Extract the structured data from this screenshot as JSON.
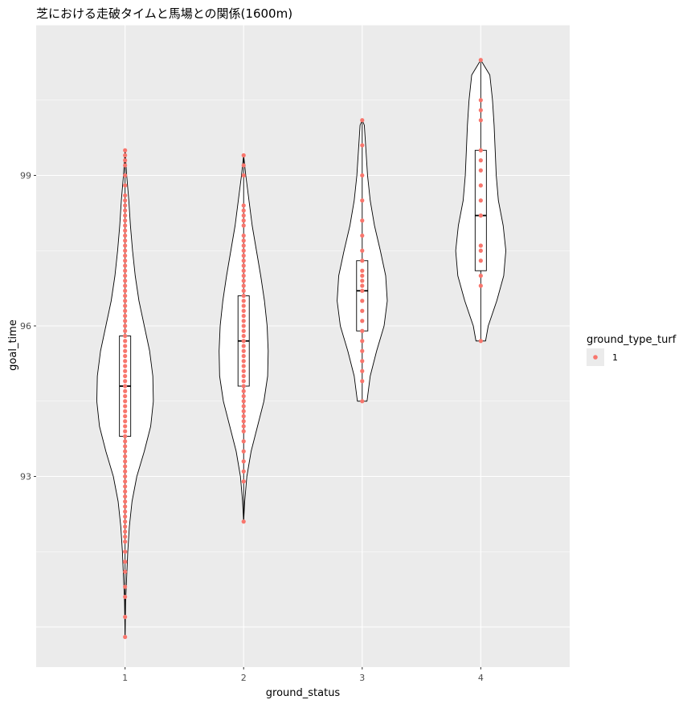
{
  "chart_data": {
    "type": "violin",
    "title": "芝における走破タイムと馬場との関係(1600m)",
    "xlabel": "ground_status",
    "ylabel": "goal_time",
    "categories": [
      "1",
      "2",
      "3",
      "4"
    ],
    "y_ticks": [
      93,
      96,
      99
    ],
    "ylim": [
      89.2,
      102.0
    ],
    "grid": true,
    "legend": {
      "title": "ground_type_turf",
      "position": "right",
      "entries": [
        {
          "label": "1",
          "color": "#F8766D"
        }
      ]
    },
    "point_color": "#F8766D",
    "groups": [
      {
        "category": "1",
        "box": {
          "min": 89.8,
          "q1": 93.8,
          "median": 94.8,
          "q3": 95.8,
          "max": 99.5
        },
        "violin": [
          [
            89.8,
            0.0
          ],
          [
            90.5,
            0.01
          ],
          [
            91.0,
            0.03
          ],
          [
            91.5,
            0.05
          ],
          [
            92.0,
            0.08
          ],
          [
            92.5,
            0.13
          ],
          [
            93.0,
            0.22
          ],
          [
            93.5,
            0.36
          ],
          [
            94.0,
            0.48
          ],
          [
            94.5,
            0.53
          ],
          [
            95.0,
            0.52
          ],
          [
            95.5,
            0.46
          ],
          [
            96.0,
            0.36
          ],
          [
            96.5,
            0.26
          ],
          [
            97.0,
            0.19
          ],
          [
            97.5,
            0.14
          ],
          [
            98.0,
            0.1
          ],
          [
            98.5,
            0.07
          ],
          [
            99.0,
            0.03
          ],
          [
            99.5,
            0.0
          ]
        ],
        "points": [
          89.8,
          90.2,
          90.6,
          90.8,
          91.1,
          91.3,
          91.5,
          91.7,
          91.8,
          91.9,
          92.0,
          92.1,
          92.2,
          92.3,
          92.4,
          92.5,
          92.6,
          92.7,
          92.8,
          92.9,
          93.0,
          93.1,
          93.2,
          93.3,
          93.4,
          93.5,
          93.6,
          93.7,
          93.8,
          93.9,
          94.0,
          94.1,
          94.2,
          94.3,
          94.4,
          94.5,
          94.6,
          94.7,
          94.8,
          94.9,
          95.0,
          95.1,
          95.2,
          95.3,
          95.4,
          95.5,
          95.6,
          95.7,
          95.8,
          95.9,
          96.0,
          96.1,
          96.2,
          96.3,
          96.4,
          96.5,
          96.6,
          96.7,
          96.8,
          96.9,
          97.0,
          97.1,
          97.2,
          97.3,
          97.4,
          97.5,
          97.6,
          97.7,
          97.8,
          97.9,
          98.0,
          98.1,
          98.2,
          98.3,
          98.4,
          98.5,
          98.6,
          98.8,
          99.0,
          99.2,
          99.3,
          99.4,
          99.5
        ]
      },
      {
        "category": "2",
        "box": {
          "min": 92.1,
          "q1": 94.8,
          "median": 95.7,
          "q3": 96.6,
          "max": 99.4
        },
        "violin": [
          [
            92.1,
            0.0
          ],
          [
            92.5,
            0.02
          ],
          [
            93.0,
            0.06
          ],
          [
            93.5,
            0.14
          ],
          [
            94.0,
            0.26
          ],
          [
            94.5,
            0.38
          ],
          [
            95.0,
            0.45
          ],
          [
            95.5,
            0.46
          ],
          [
            96.0,
            0.44
          ],
          [
            96.5,
            0.39
          ],
          [
            97.0,
            0.32
          ],
          [
            97.5,
            0.24
          ],
          [
            98.0,
            0.16
          ],
          [
            98.5,
            0.1
          ],
          [
            99.0,
            0.04
          ],
          [
            99.4,
            0.0
          ]
        ],
        "points": [
          92.1,
          92.9,
          93.1,
          93.3,
          93.5,
          93.7,
          93.9,
          94.0,
          94.1,
          94.2,
          94.3,
          94.4,
          94.5,
          94.6,
          94.7,
          94.8,
          94.9,
          95.0,
          95.1,
          95.2,
          95.3,
          95.4,
          95.5,
          95.6,
          95.7,
          95.8,
          95.9,
          96.0,
          96.1,
          96.2,
          96.3,
          96.4,
          96.5,
          96.6,
          96.7,
          96.8,
          96.9,
          97.0,
          97.1,
          97.2,
          97.3,
          97.4,
          97.5,
          97.6,
          97.7,
          97.8,
          98.0,
          98.1,
          98.2,
          98.3,
          98.4,
          99.0,
          99.2,
          99.4
        ]
      },
      {
        "category": "3",
        "box": {
          "min": 94.5,
          "q1": 95.9,
          "median": 96.7,
          "q3": 97.3,
          "max": 100.1
        },
        "violin": [
          [
            94.5,
            0.09
          ],
          [
            95.0,
            0.15
          ],
          [
            95.5,
            0.27
          ],
          [
            96.0,
            0.41
          ],
          [
            96.5,
            0.47
          ],
          [
            97.0,
            0.44
          ],
          [
            97.5,
            0.34
          ],
          [
            98.0,
            0.23
          ],
          [
            98.5,
            0.15
          ],
          [
            99.0,
            0.1
          ],
          [
            99.5,
            0.07
          ],
          [
            100.0,
            0.04
          ],
          [
            100.1,
            0.0
          ]
        ],
        "points": [
          94.5,
          94.9,
          95.1,
          95.3,
          95.5,
          95.7,
          95.9,
          96.1,
          96.3,
          96.5,
          96.7,
          96.8,
          96.9,
          97.0,
          97.1,
          97.3,
          97.5,
          97.8,
          98.1,
          98.5,
          99.0,
          99.6,
          100.1
        ]
      },
      {
        "category": "4",
        "box": {
          "min": 95.7,
          "q1": 97.1,
          "median": 98.2,
          "q3": 99.5,
          "max": 101.3
        },
        "violin": [
          [
            95.7,
            0.09
          ],
          [
            96.0,
            0.14
          ],
          [
            96.5,
            0.3
          ],
          [
            97.0,
            0.43
          ],
          [
            97.5,
            0.47
          ],
          [
            98.0,
            0.42
          ],
          [
            98.5,
            0.33
          ],
          [
            99.0,
            0.29
          ],
          [
            99.5,
            0.27
          ],
          [
            100.0,
            0.25
          ],
          [
            100.5,
            0.22
          ],
          [
            101.0,
            0.17
          ],
          [
            101.3,
            0.0
          ]
        ],
        "points": [
          95.7,
          96.8,
          97.0,
          97.3,
          97.5,
          97.6,
          98.2,
          98.5,
          98.8,
          99.1,
          99.3,
          99.5,
          100.1,
          100.3,
          100.5,
          101.3
        ]
      }
    ]
  }
}
